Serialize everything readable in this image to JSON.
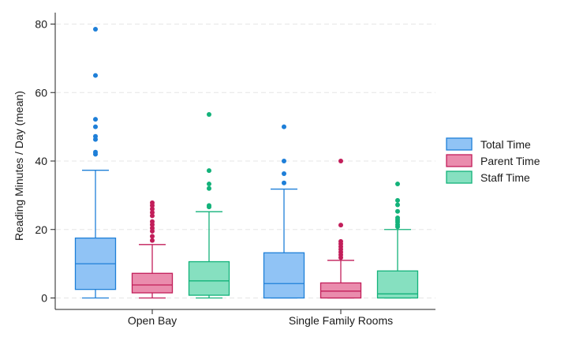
{
  "chart_data": {
    "type": "box",
    "title": "",
    "xlabel": "",
    "ylabel": "Reading Minutes / Day (mean)",
    "ylim": [
      0,
      83
    ],
    "yticks": [
      0,
      20,
      40,
      60,
      80
    ],
    "grid": true,
    "legend_position": "right",
    "categories": [
      "Open Bay",
      "Single Family Rooms"
    ],
    "series": [
      {
        "name": "Total Time",
        "color": "#1E7FD8",
        "fill": "#90C3F5",
        "boxes": [
          {
            "min": 0,
            "q1": 2.5,
            "median": 10,
            "q3": 17.5,
            "max": 37.3,
            "outliers": [
              42,
              42.6,
              46.3,
              47.2,
              50,
              52.2,
              65,
              78.5
            ]
          },
          {
            "min": 0,
            "q1": 0,
            "median": 4.2,
            "q3": 13.2,
            "max": 31.8,
            "outliers": [
              33.6,
              36.3,
              40,
              50
            ]
          }
        ]
      },
      {
        "name": "Parent Time",
        "color": "#C21E5A",
        "fill": "#EA8CAD",
        "boxes": [
          {
            "min": 0,
            "q1": 1.5,
            "median": 3.8,
            "q3": 7.2,
            "max": 15.6,
            "outliers": [
              16.8,
              18,
              19.5,
              20.4,
              21.4,
              22.3,
              24,
              25,
              26,
              27,
              27.8
            ]
          },
          {
            "min": 0,
            "q1": 0,
            "median": 2,
            "q3": 4.4,
            "max": 11,
            "outliers": [
              11.8,
              12.6,
              13.4,
              14.2,
              15,
              15.8,
              16.5,
              21.3,
              40
            ]
          }
        ]
      },
      {
        "name": "Staff Time",
        "color": "#13B27A",
        "fill": "#86E0C0",
        "boxes": [
          {
            "min": 0,
            "q1": 0.8,
            "median": 5,
            "q3": 10.6,
            "max": 25.2,
            "outliers": [
              26.6,
              27,
              32,
              33.3,
              37.2,
              53.6
            ]
          },
          {
            "min": 0,
            "q1": 0,
            "median": 1.2,
            "q3": 7.9,
            "max": 20,
            "outliers": [
              20.8,
              21.4,
              22.2,
              22.8,
              23.4,
              25.3,
              27.2,
              28.5,
              33.3
            ]
          }
        ]
      }
    ]
  }
}
